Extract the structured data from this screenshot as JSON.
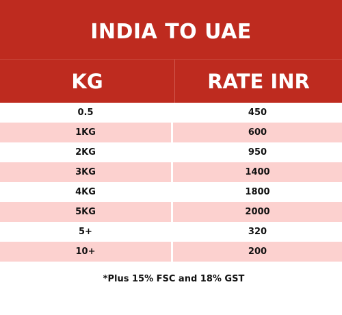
{
  "title": "INDIA TO UAE",
  "headers": {
    "kg": "KG",
    "rate": "RATE INR"
  },
  "rows": [
    {
      "kg": "0.5",
      "rate": "450"
    },
    {
      "kg": "1KG",
      "rate": "600"
    },
    {
      "kg": "2KG",
      "rate": "950"
    },
    {
      "kg": "3KG",
      "rate": "1400"
    },
    {
      "kg": "4KG",
      "rate": "1800"
    },
    {
      "kg": "5KG",
      "rate": "2000"
    },
    {
      "kg": "5+",
      "rate": "320"
    },
    {
      "kg": "10+",
      "rate": "200"
    }
  ],
  "note": "*Plus 15% FSC and 18% GST",
  "colors": {
    "header": "#be2b1f",
    "shaded_row": "#fcd1cf"
  }
}
